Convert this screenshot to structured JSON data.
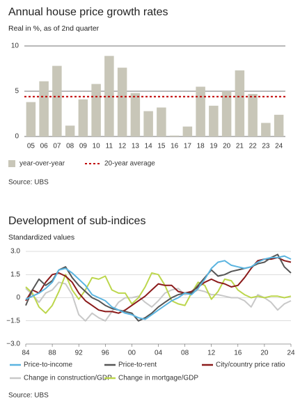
{
  "chart_data": [
    {
      "type": "bar",
      "title": "Annual house price growth rates",
      "subtitle": "Real in %, as of 2nd quarter",
      "categories": [
        "05",
        "06",
        "07",
        "08",
        "09",
        "10",
        "11",
        "12",
        "13",
        "14",
        "15",
        "16",
        "17",
        "18",
        "19",
        "20",
        "21",
        "22",
        "23",
        "24"
      ],
      "series": [
        {
          "name": "year-over-year",
          "color": "#c8c6b8",
          "values": [
            3.8,
            6.1,
            7.8,
            1.2,
            4.1,
            5.8,
            8.9,
            7.6,
            4.8,
            2.8,
            3.2,
            0.1,
            1.1,
            5.5,
            3.4,
            5.0,
            7.3,
            4.7,
            1.5,
            2.4
          ]
        }
      ],
      "reference_line": {
        "name": "20-year average",
        "value": 4.4,
        "color": "#c00000"
      },
      "ylim": [
        0,
        10
      ],
      "yticks": [
        0,
        5,
        10
      ],
      "grid": true,
      "legend": "bottom",
      "source": "Source: UBS"
    },
    {
      "type": "line",
      "title": "Development of sub-indices",
      "subtitle": "Standardized values",
      "x": [
        1984,
        1985,
        1986,
        1987,
        1988,
        1989,
        1990,
        1991,
        1992,
        1993,
        1994,
        1995,
        1996,
        1997,
        1998,
        1999,
        2000,
        2001,
        2002,
        2003,
        2004,
        2005,
        2006,
        2007,
        2008,
        2009,
        2010,
        2011,
        2012,
        2013,
        2014,
        2015,
        2016,
        2017,
        2018,
        2019,
        2020,
        2021,
        2022,
        2023,
        2024
      ],
      "series": [
        {
          "name": "Price-to-income",
          "color": "#5ab4e0",
          "values": [
            -0.1,
            0.1,
            0.3,
            0.6,
            1.0,
            1.8,
            1.9,
            1.6,
            1.2,
            0.8,
            0.2,
            0.0,
            -0.2,
            -0.6,
            -0.8,
            -1.0,
            -1.1,
            -1.3,
            -1.4,
            -1.1,
            -0.8,
            -0.5,
            -0.2,
            0.0,
            0.3,
            0.2,
            0.6,
            1.2,
            1.9,
            2.3,
            2.4,
            2.1,
            2.0,
            1.9,
            2.0,
            2.3,
            2.5,
            2.6,
            2.6,
            2.7,
            2.5
          ]
        },
        {
          "name": "Price-to-rent",
          "color": "#555555",
          "values": [
            -0.5,
            0.5,
            1.2,
            0.8,
            1.1,
            1.8,
            2.0,
            1.3,
            0.8,
            0.4,
            0.0,
            -0.2,
            -0.5,
            -0.7,
            -0.8,
            -0.9,
            -1.0,
            -1.5,
            -1.3,
            -1.0,
            -0.6,
            -0.3,
            0.0,
            0.2,
            0.3,
            0.3,
            0.8,
            1.3,
            1.8,
            1.4,
            1.5,
            1.7,
            1.8,
            1.9,
            2.0,
            2.2,
            2.3,
            2.6,
            2.8,
            2.0,
            1.6
          ]
        },
        {
          "name": "City/country price ratio",
          "color": "#8b1a1a",
          "values": [
            -0.2,
            0.5,
            0.3,
            1.0,
            1.5,
            1.6,
            1.4,
            1.0,
            0.3,
            -0.2,
            -0.5,
            -0.8,
            -0.9,
            -0.9,
            -1.0,
            -0.8,
            -0.5,
            -0.2,
            0.1,
            0.5,
            0.9,
            0.8,
            0.8,
            0.4,
            0.3,
            0.4,
            0.7,
            1.0,
            1.2,
            1.0,
            0.9,
            0.7,
            0.8,
            1.3,
            1.9,
            2.4,
            2.5,
            2.5,
            2.6,
            2.4,
            2.3
          ]
        },
        {
          "name": "Change in construction/GDP",
          "color": "#c8c8c8",
          "values": [
            0.6,
            0.2,
            -0.3,
            0.3,
            0.5,
            1.0,
            0.9,
            0.2,
            -1.1,
            -1.5,
            -1.0,
            -1.3,
            -1.5,
            -0.9,
            -0.3,
            0.0,
            0.0,
            0.1,
            -0.3,
            -0.6,
            -0.2,
            0.3,
            0.5,
            0.6,
            0.2,
            0.3,
            0.5,
            0.4,
            0.2,
            0.2,
            0.1,
            0.0,
            0.0,
            -0.2,
            -0.6,
            0.2,
            0.0,
            -0.3,
            -0.8,
            -0.4,
            -0.2
          ]
        },
        {
          "name": "Change in mortgage/GDP",
          "color": "#bcd64c",
          "values": [
            0.7,
            0.3,
            -0.6,
            -1.0,
            -0.5,
            0.4,
            1.5,
            0.5,
            -0.1,
            0.5,
            1.3,
            1.2,
            1.4,
            0.5,
            0.3,
            0.3,
            -0.4,
            0.0,
            0.7,
            1.6,
            1.5,
            0.8,
            -0.2,
            -0.4,
            -0.5,
            0.3,
            1.0,
            0.8,
            -0.1,
            0.4,
            1.2,
            1.1,
            0.5,
            0.2,
            0.0,
            0.1,
            0.0,
            0.1,
            0.1,
            0.0,
            0.1
          ]
        }
      ],
      "xlim": [
        1984,
        2024
      ],
      "xticks": [
        {
          "value": 1984,
          "label": "84"
        },
        {
          "value": 1988,
          "label": "88"
        },
        {
          "value": 1992,
          "label": "92"
        },
        {
          "value": 1996,
          "label": "96"
        },
        {
          "value": 2000,
          "label": "00"
        },
        {
          "value": 2004,
          "label": "04"
        },
        {
          "value": 2008,
          "label": "08"
        },
        {
          "value": 2012,
          "label": "12"
        },
        {
          "value": 2016,
          "label": "16"
        },
        {
          "value": 2020,
          "label": "20"
        },
        {
          "value": 2024,
          "label": "24"
        }
      ],
      "ylim": [
        -3,
        3
      ],
      "yticks": [
        {
          "value": -3,
          "label": "−3.0"
        },
        {
          "value": -1.5,
          "label": "−1.5"
        },
        0,
        1.5,
        {
          "value": 3,
          "label": "3.0"
        }
      ],
      "grid": true,
      "legend": "bottom",
      "source": "Source: UBS"
    }
  ]
}
